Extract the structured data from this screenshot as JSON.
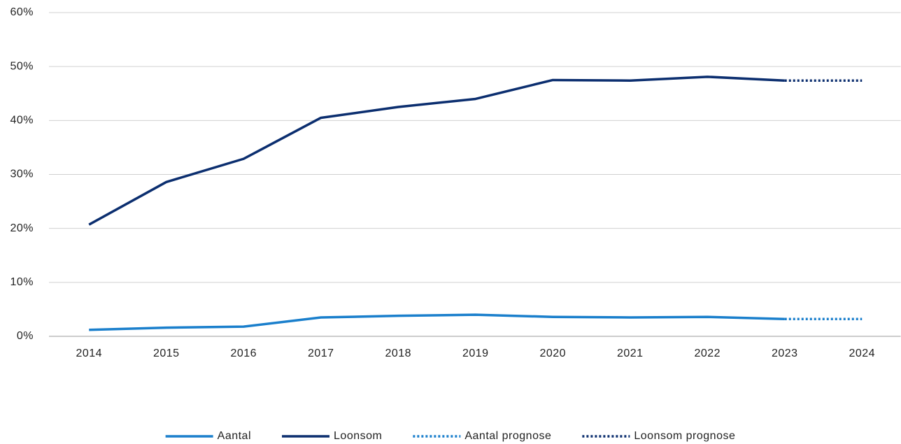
{
  "chart_data": {
    "type": "line",
    "categories": [
      "2014",
      "2015",
      "2016",
      "2017",
      "2018",
      "2019",
      "2020",
      "2021",
      "2022",
      "2023",
      "2024"
    ],
    "series": [
      {
        "name": "Aantal",
        "color": "#1a7fcc",
        "style": "solid",
        "values": [
          1.2,
          1.6,
          1.8,
          3.5,
          3.8,
          4.0,
          3.6,
          3.5,
          3.6,
          3.2,
          null
        ]
      },
      {
        "name": "Loonsom",
        "color": "#0b2e6f",
        "style": "solid",
        "values": [
          20.7,
          28.6,
          32.9,
          40.5,
          42.5,
          44.0,
          47.5,
          47.4,
          48.1,
          47.4,
          null
        ]
      },
      {
        "name": "Aantal prognose",
        "color": "#1a7fcc",
        "style": "dotted",
        "values": [
          null,
          null,
          null,
          null,
          null,
          null,
          null,
          null,
          null,
          3.2,
          3.2
        ]
      },
      {
        "name": "Loonsom prognose",
        "color": "#0b2e6f",
        "style": "dotted",
        "values": [
          null,
          null,
          null,
          null,
          null,
          null,
          null,
          null,
          null,
          47.4,
          47.4
        ]
      }
    ],
    "ylim": [
      0,
      60
    ],
    "yticks": [
      {
        "value": 0,
        "label": "0%"
      },
      {
        "value": 10,
        "label": "10%"
      },
      {
        "value": 20,
        "label": "20%"
      },
      {
        "value": 30,
        "label": "30%"
      },
      {
        "value": 40,
        "label": "40%"
      },
      {
        "value": 50,
        "label": "50%"
      },
      {
        "value": 60,
        "label": "60%"
      }
    ],
    "grid": true,
    "legend": "bottom"
  }
}
